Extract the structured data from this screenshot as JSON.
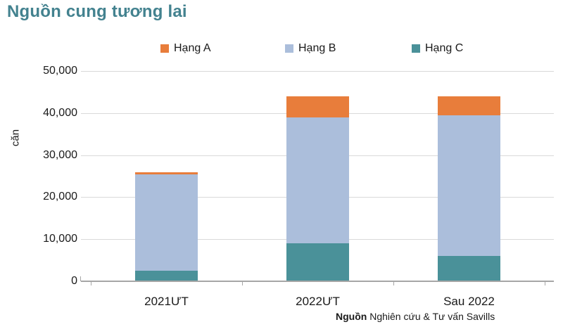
{
  "title": "Nguồn cung tương lai",
  "y_axis_title": "căn",
  "source": {
    "label": "Nguồn",
    "text": " Nghiên cứu & Tư vấn Savills"
  },
  "colors": {
    "title": "#43828f",
    "hang_a": "#e87d3b",
    "hang_b": "#abbedb",
    "hang_c": "#4a9199",
    "gridline": "#d9d9d9",
    "axis": "#a6a6a6"
  },
  "chart_data": {
    "type": "bar",
    "stacked": true,
    "title": "Nguồn cung tương lai",
    "categories": [
      "2021ƯT",
      "2022ƯT",
      "Sau 2022"
    ],
    "series": [
      {
        "name": "Hạng A",
        "color": "#e87d3b",
        "values": [
          500,
          5000,
          4500
        ]
      },
      {
        "name": "Hạng B",
        "color": "#abbedb",
        "values": [
          23000,
          30000,
          33500
        ]
      },
      {
        "name": "Hạng C",
        "color": "#4a9199",
        "values": [
          2500,
          9000,
          6000
        ]
      }
    ],
    "totals": [
      26000,
      44000,
      44000
    ],
    "xlabel": "",
    "ylabel": "căn",
    "ylim": [
      0,
      50000
    ],
    "ytick_step": 10000,
    "yticks": [
      "0",
      "10,000",
      "20,000",
      "30,000",
      "40,000",
      "50,000"
    ],
    "grid": true,
    "legend_position": "top"
  }
}
